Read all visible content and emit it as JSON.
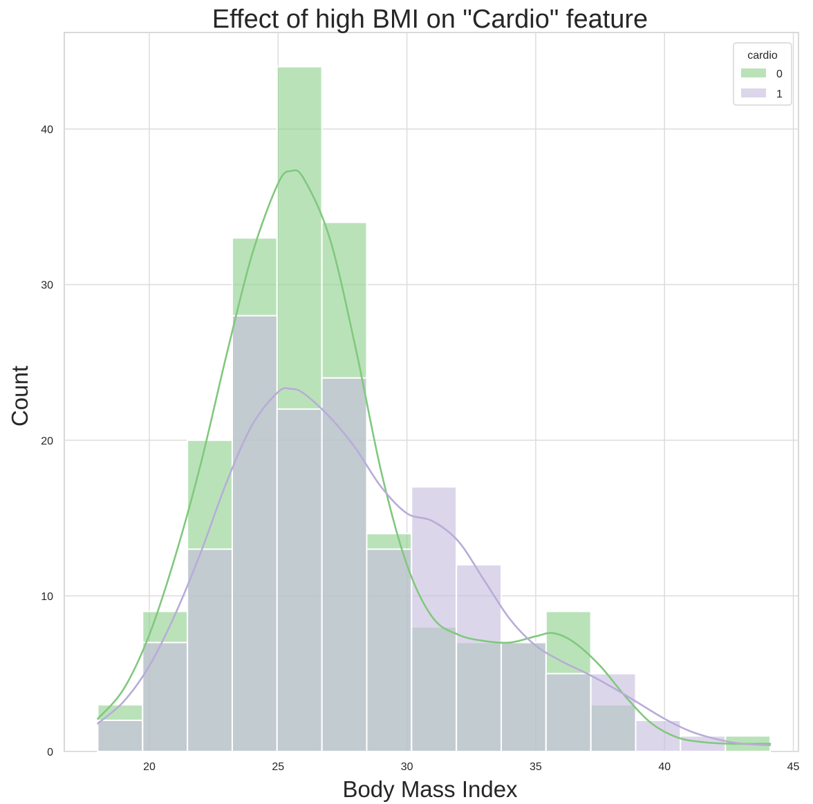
{
  "chart_data": {
    "type": "bar",
    "title": "Effect of high BMI on \"Cardio\" feature",
    "xlabel": "Body Mass Index",
    "ylabel": "Count",
    "xlim": [
      16.7,
      45.2
    ],
    "ylim": [
      0,
      46.2
    ],
    "x_ticks": [
      "20",
      "25",
      "30",
      "35",
      "40",
      "45"
    ],
    "x_tick_values": [
      20,
      25,
      30,
      35,
      40,
      45
    ],
    "y_ticks": [
      "0",
      "10",
      "20",
      "30",
      "40"
    ],
    "y_tick_values": [
      0,
      10,
      20,
      30,
      40
    ],
    "grid": true,
    "legend": {
      "title": "cardio",
      "placement": "top-right"
    },
    "bin_edges": [
      18.0,
      19.74,
      21.48,
      23.22,
      24.96,
      26.7,
      28.44,
      30.18,
      31.92,
      33.66,
      35.4,
      37.14,
      38.88,
      40.62,
      42.36,
      44.1
    ],
    "series": [
      {
        "name": "0",
        "color": "#90d08e",
        "line_color": "#80c87d",
        "values": [
          3,
          9,
          20,
          33,
          44,
          34,
          14,
          8,
          7,
          7,
          9,
          3,
          0,
          0,
          1
        ],
        "kde": [
          [
            18,
            2.1
          ],
          [
            19,
            4.0
          ],
          [
            20,
            7.5
          ],
          [
            21,
            12.5
          ],
          [
            22,
            18.5
          ],
          [
            23,
            25.5
          ],
          [
            24,
            32.0
          ],
          [
            25,
            36.5
          ],
          [
            25.5,
            37.3
          ],
          [
            26,
            36.8
          ],
          [
            27,
            33.0
          ],
          [
            28,
            26.0
          ],
          [
            29,
            18.0
          ],
          [
            30,
            12.0
          ],
          [
            31,
            8.6
          ],
          [
            32,
            7.5
          ],
          [
            33,
            7.1
          ],
          [
            34,
            7.0
          ],
          [
            35,
            7.4
          ],
          [
            35.7,
            7.6
          ],
          [
            36.5,
            7.0
          ],
          [
            37.5,
            5.5
          ],
          [
            38.5,
            3.5
          ],
          [
            39.5,
            1.8
          ],
          [
            40.5,
            0.9
          ],
          [
            41.5,
            0.6
          ],
          [
            42.5,
            0.5
          ],
          [
            44.1,
            0.5
          ]
        ]
      },
      {
        "name": "1",
        "color": "#c6bddf",
        "line_color": "#b8acd8",
        "values": [
          2,
          7,
          13,
          28,
          22,
          24,
          13,
          17,
          12,
          7,
          5,
          5,
          2,
          1,
          0
        ],
        "kde": [
          [
            18,
            1.8
          ],
          [
            19,
            3.2
          ],
          [
            20,
            5.5
          ],
          [
            21,
            8.8
          ],
          [
            22,
            12.8
          ],
          [
            23,
            17.3
          ],
          [
            24,
            21.0
          ],
          [
            25,
            23.1
          ],
          [
            25.5,
            23.3
          ],
          [
            26,
            23.0
          ],
          [
            27,
            21.5
          ],
          [
            28,
            19.5
          ],
          [
            29,
            17.0
          ],
          [
            30,
            15.3
          ],
          [
            31,
            14.8
          ],
          [
            32,
            13.5
          ],
          [
            33,
            11.0
          ],
          [
            34,
            8.5
          ],
          [
            35,
            6.8
          ],
          [
            36,
            5.8
          ],
          [
            37,
            5.0
          ],
          [
            38,
            4.1
          ],
          [
            39,
            3.1
          ],
          [
            40,
            2.1
          ],
          [
            41,
            1.3
          ],
          [
            42,
            0.8
          ],
          [
            43,
            0.5
          ],
          [
            44.1,
            0.4
          ]
        ]
      }
    ]
  }
}
